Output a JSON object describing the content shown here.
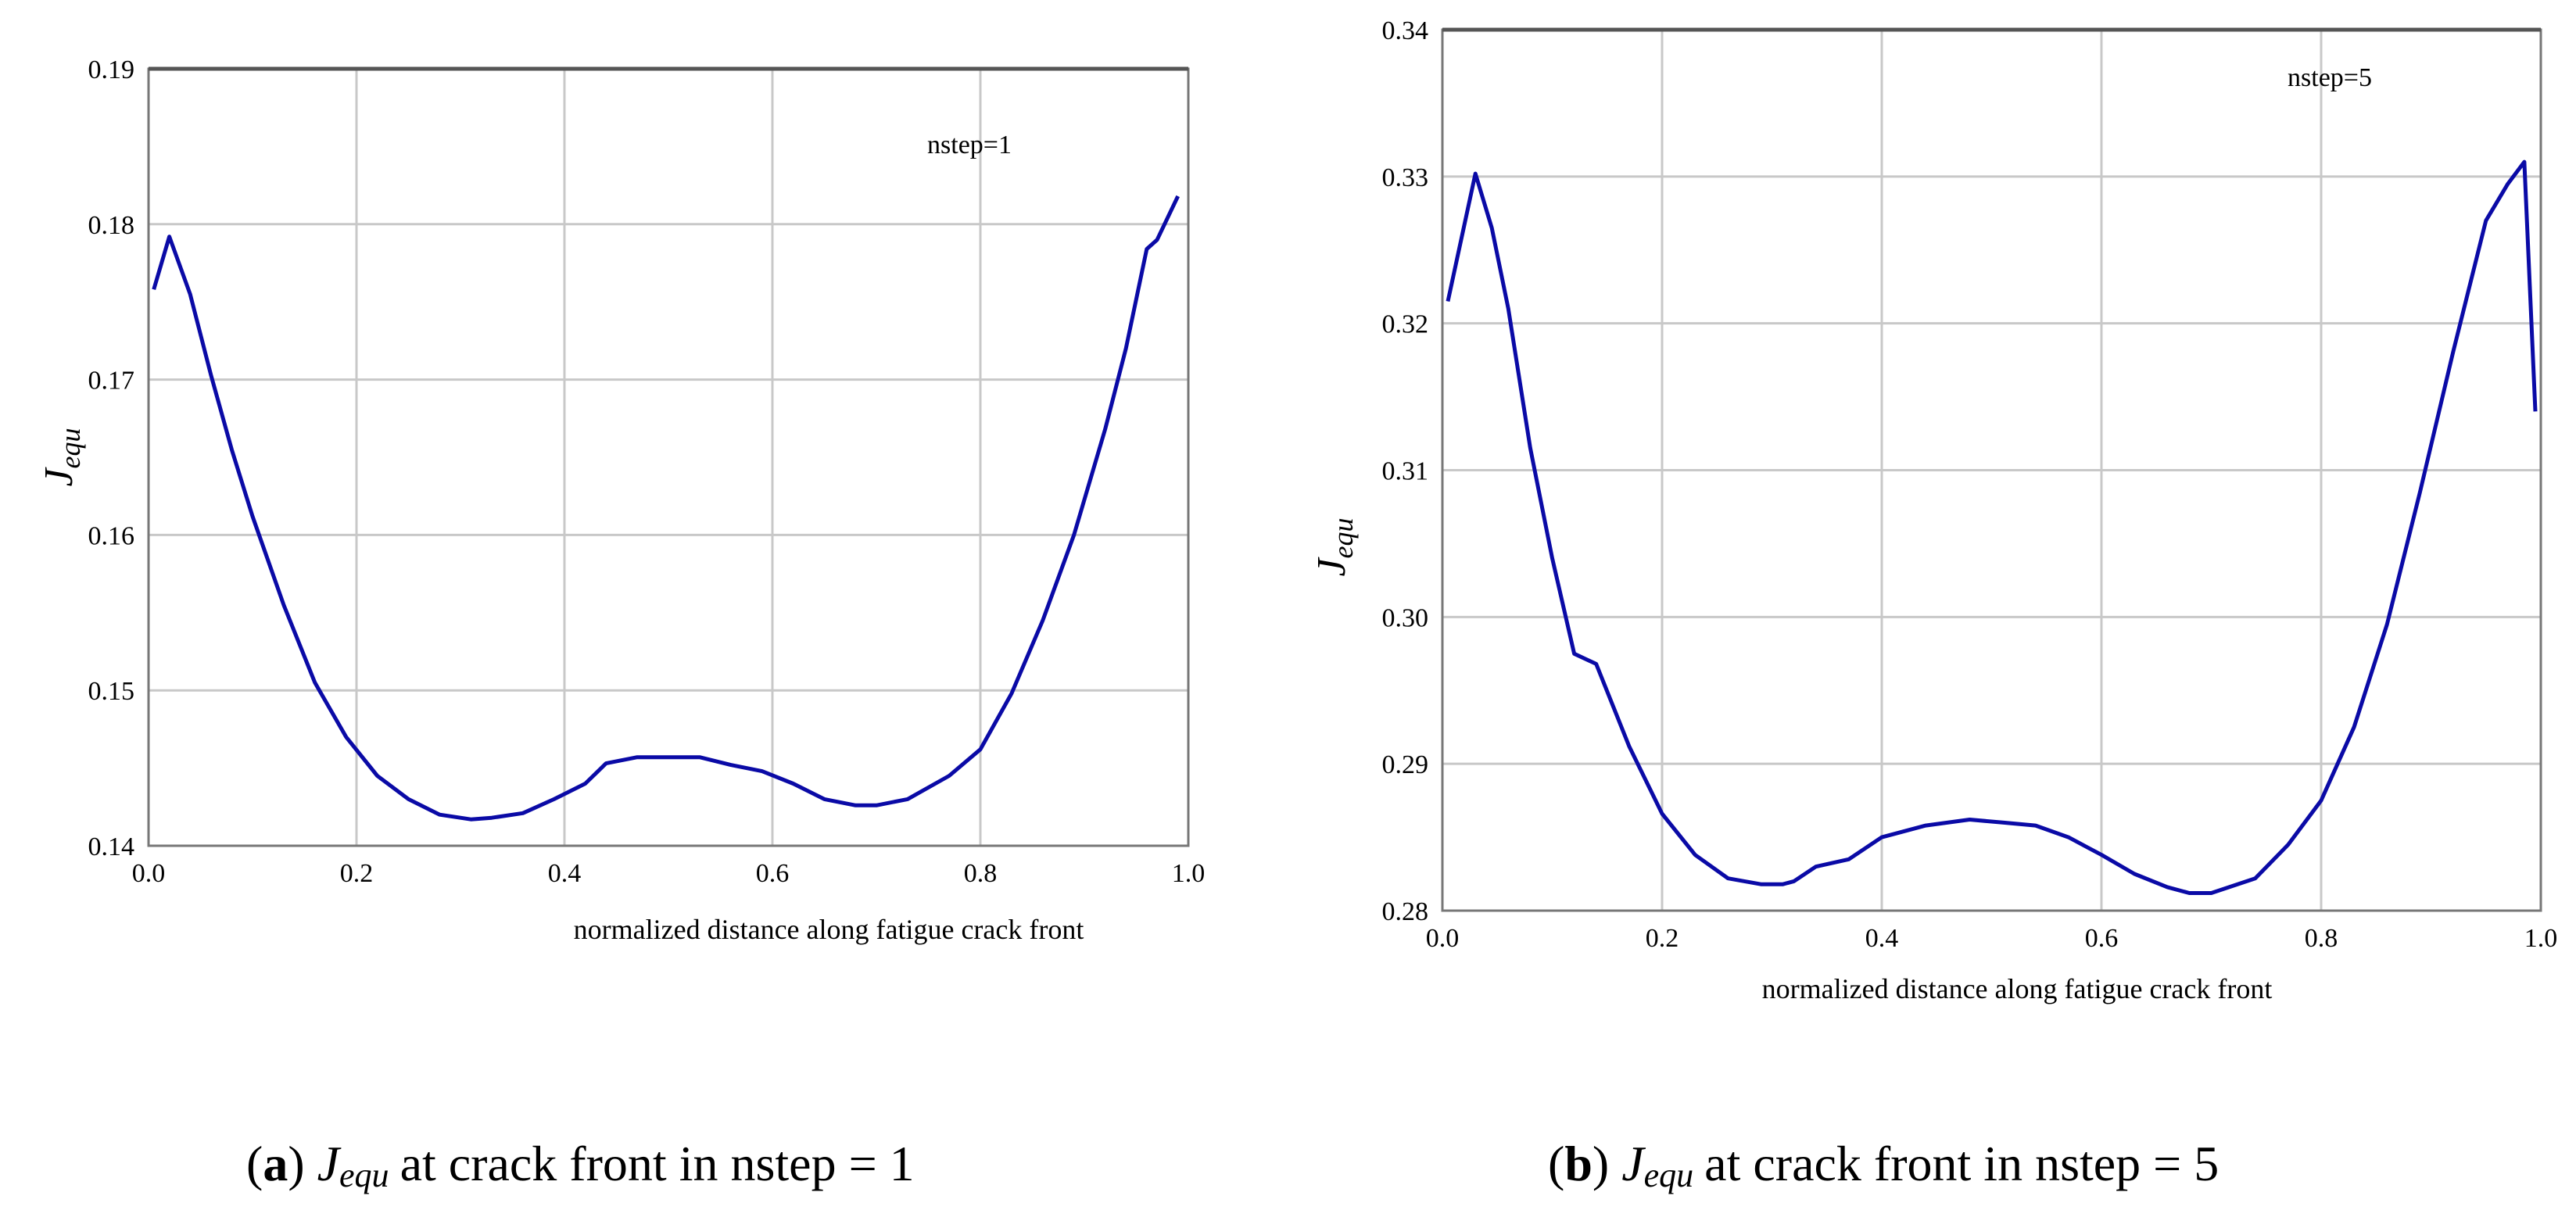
{
  "colors": {
    "line": "#0a0aa6",
    "grid": "#c8c8c8",
    "frame": "#555555"
  },
  "chart_data": [
    {
      "type": "line",
      "annotation": "nstep=1",
      "xlabel": "normalized distance along fatigue crack front",
      "ylabel": {
        "main": "J",
        "sub": "equ"
      },
      "xlim": [
        0.0,
        1.0
      ],
      "ylim": [
        0.14,
        0.19
      ],
      "x_ticks": [
        "0.0",
        "0.2",
        "0.4",
        "0.6",
        "0.8",
        "1.0"
      ],
      "y_ticks": [
        "0.14",
        "0.15",
        "0.16",
        "0.17",
        "0.18",
        "0.19"
      ],
      "series": [
        {
          "name": "nstep=1",
          "x": [
            0.005,
            0.02,
            0.04,
            0.06,
            0.08,
            0.1,
            0.13,
            0.16,
            0.19,
            0.22,
            0.25,
            0.28,
            0.31,
            0.33,
            0.36,
            0.39,
            0.42,
            0.44,
            0.47,
            0.5,
            0.53,
            0.56,
            0.59,
            0.62,
            0.65,
            0.68,
            0.7,
            0.73,
            0.77,
            0.8,
            0.83,
            0.86,
            0.89,
            0.92,
            0.94,
            0.96,
            0.97,
            0.99
          ],
          "y": [
            0.1758,
            0.1792,
            0.1755,
            0.1703,
            0.1655,
            0.1612,
            0.1555,
            0.1505,
            0.147,
            0.1445,
            0.143,
            0.142,
            0.1417,
            0.1418,
            0.1421,
            0.143,
            0.144,
            0.1453,
            0.1457,
            0.1457,
            0.1457,
            0.1452,
            0.1448,
            0.144,
            0.143,
            0.1426,
            0.1426,
            0.143,
            0.1445,
            0.1462,
            0.1498,
            0.1545,
            0.16,
            0.1668,
            0.172,
            0.1784,
            0.179,
            0.1818
          ]
        }
      ]
    },
    {
      "type": "line",
      "annotation": "nstep=5",
      "xlabel": "normalized distance along fatigue crack front",
      "ylabel": {
        "main": "J",
        "sub": "equ"
      },
      "xlim": [
        0.0,
        1.0
      ],
      "ylim": [
        0.28,
        0.34
      ],
      "x_ticks": [
        "0.0",
        "0.2",
        "0.4",
        "0.6",
        "0.8",
        "1.0"
      ],
      "y_ticks": [
        "0.28",
        "0.29",
        "0.30",
        "0.31",
        "0.32",
        "0.33",
        "0.34"
      ],
      "series": [
        {
          "name": "nstep=5",
          "x": [
            0.005,
            0.03,
            0.045,
            0.06,
            0.08,
            0.1,
            0.12,
            0.14,
            0.17,
            0.2,
            0.23,
            0.26,
            0.29,
            0.31,
            0.32,
            0.34,
            0.37,
            0.4,
            0.44,
            0.48,
            0.51,
            0.54,
            0.57,
            0.6,
            0.63,
            0.66,
            0.68,
            0.7,
            0.74,
            0.77,
            0.8,
            0.83,
            0.86,
            0.89,
            0.92,
            0.95,
            0.97,
            0.985,
            0.995
          ],
          "y": [
            0.3215,
            0.3302,
            0.3265,
            0.321,
            0.3115,
            0.304,
            0.2975,
            0.2968,
            0.2912,
            0.2866,
            0.2838,
            0.2822,
            0.2818,
            0.2818,
            0.282,
            0.283,
            0.2835,
            0.285,
            0.2858,
            0.2862,
            0.286,
            0.2858,
            0.285,
            0.2838,
            0.2825,
            0.2816,
            0.2812,
            0.2812,
            0.2822,
            0.2845,
            0.2875,
            0.2925,
            0.2995,
            0.3085,
            0.318,
            0.327,
            0.3295,
            0.331,
            0.314
          ]
        }
      ]
    }
  ],
  "captions": [
    {
      "label": "a",
      "sym_main": "J",
      "sym_sub": "equ",
      "text": "at crack front in  nstep = 1"
    },
    {
      "label": "b",
      "sym_main": "J",
      "sym_sub": "equ",
      "text": "at crack front in  nstep = 5"
    }
  ]
}
